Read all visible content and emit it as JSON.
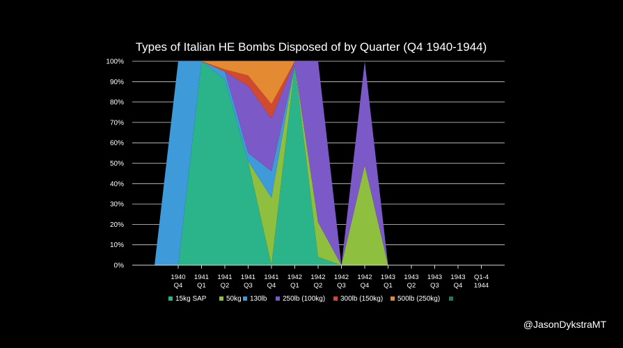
{
  "chart_data": {
    "type": "area",
    "stacked": true,
    "percent": true,
    "title": "Types of Italian HE Bombs Disposed of by Quarter (Q4 1940-1944)",
    "categories": [
      [
        "1940",
        "Q4"
      ],
      [
        "1941",
        "Q1"
      ],
      [
        "1941",
        "Q2"
      ],
      [
        "1941",
        "Q3"
      ],
      [
        "1941",
        "Q4"
      ],
      [
        "1942",
        "Q1"
      ],
      [
        "1942",
        "Q2"
      ],
      [
        "1942",
        "Q3"
      ],
      [
        "1942",
        "Q4"
      ],
      [
        "1943",
        "Q1"
      ],
      [
        "1943",
        "Q2"
      ],
      [
        "1943",
        "Q3"
      ],
      [
        "1943",
        "Q4"
      ],
      [
        "Q1-4",
        "1944"
      ]
    ],
    "y_ticks": [
      "0%",
      "10%",
      "20%",
      "30%",
      "40%",
      "50%",
      "60%",
      "70%",
      "80%",
      "90%",
      "100%"
    ],
    "ylim": [
      0,
      100
    ],
    "grid": true,
    "legend_position": "bottom",
    "series": [
      {
        "name": "15kg SAP",
        "color": "#2bb38a",
        "values": [
          0,
          100,
          91,
          51,
          0,
          98,
          4,
          0,
          0,
          0,
          0,
          0,
          0,
          0
        ]
      },
      {
        "name": "50kg",
        "color": "#8fbf3f",
        "values": [
          0,
          0,
          0,
          0,
          33,
          0,
          17,
          0,
          49,
          0,
          0,
          0,
          0,
          0
        ]
      },
      {
        "name": "130lb",
        "color": "#3e9ad8",
        "values": [
          100,
          0,
          4,
          4,
          13,
          0,
          0,
          0,
          0,
          0,
          0,
          0,
          0,
          0
        ]
      },
      {
        "name": "250lb (100kg)",
        "color": "#7b59c7",
        "values": [
          0,
          0,
          0,
          33,
          26,
          2,
          79,
          0,
          51,
          0,
          0,
          0,
          0,
          0
        ]
      },
      {
        "name": "300lb (150kg)",
        "color": "#d14a2f",
        "values": [
          0,
          0,
          1,
          5,
          7,
          0,
          0,
          0,
          0,
          0,
          0,
          0,
          0,
          0
        ]
      },
      {
        "name": "500lb (250kg)",
        "color": "#e38a33",
        "values": [
          0,
          0,
          4,
          7,
          21,
          0,
          0,
          0,
          0,
          0,
          0,
          0,
          0,
          0
        ]
      },
      {
        "name": "",
        "color": "#1f7a5c",
        "values": [
          0,
          0,
          0,
          0,
          0,
          0,
          0,
          0,
          0,
          0,
          0,
          0,
          0,
          0
        ]
      }
    ]
  },
  "credit": "@JasonDykstraMT"
}
